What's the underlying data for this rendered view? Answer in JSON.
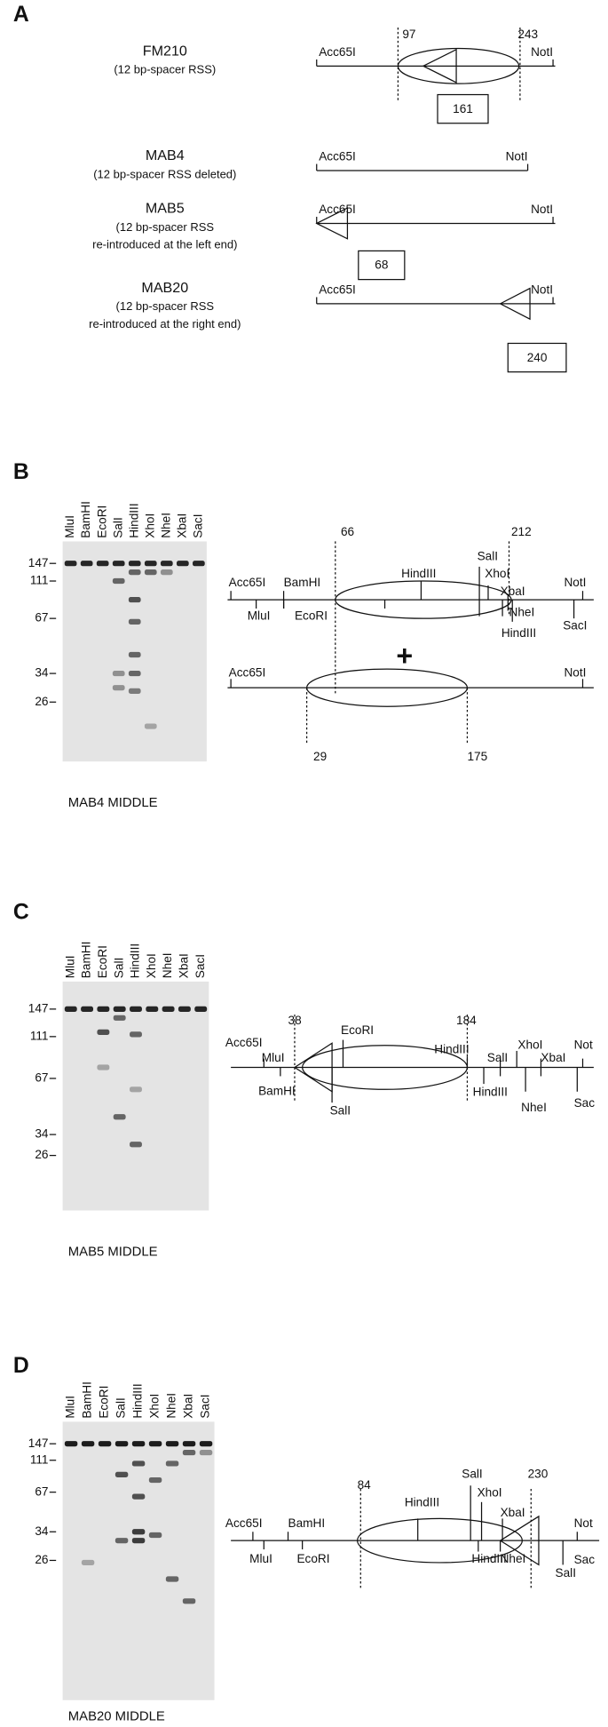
{
  "panel_a": {
    "letter": "A",
    "constructs": [
      {
        "name": "FM210",
        "description": [
          "(12 bp-spacer RSS)"
        ],
        "sites": [
          "Acc65I",
          "NotI"
        ],
        "positions": [
          "97",
          "243"
        ],
        "box": "161"
      },
      {
        "name": "MAB4",
        "description": [
          "(12 bp-spacer RSS deleted)"
        ],
        "sites": [
          "Acc65I",
          "NotI"
        ]
      },
      {
        "name": "MAB5",
        "description": [
          "(12 bp-spacer RSS",
          "re-introduced at the left end)"
        ],
        "sites": [
          "Acc65I",
          "NotI"
        ],
        "box": "68"
      },
      {
        "name": "MAB20",
        "description": [
          "(12 bp-spacer RSS",
          "re-introduced at the right end)"
        ],
        "sites": [
          "Acc65I",
          "NotI"
        ],
        "box": "240"
      }
    ]
  },
  "panel_b": {
    "letter": "B",
    "lanes": [
      "MluI",
      "BamHI",
      "EcoRI",
      "SalI",
      "HindIII",
      "XhoI",
      "NheI",
      "XbaI",
      "SacI"
    ],
    "size_markers": [
      "147",
      "111",
      "67",
      "34",
      "26"
    ],
    "caption": "MAB4 MIDDLE",
    "map_top_labels": [
      "Acc65I",
      "BamHI",
      "NotI",
      "HindIII",
      "SalI",
      "XhoI",
      "XbaI",
      "MluI",
      "EcoRI",
      "NheI",
      "SacI",
      "HindIII",
      "66",
      "212"
    ],
    "plus": "+",
    "map_bottom_labels": [
      "Acc65I",
      "NotI",
      "29",
      "175"
    ]
  },
  "panel_c": {
    "letter": "C",
    "lanes": [
      "MluI",
      "BamHI",
      "EcoRI",
      "SalI",
      "HindIII",
      "XhoI",
      "NheI",
      "XbaI",
      "SacI"
    ],
    "size_markers": [
      "147",
      "111",
      "67",
      "34",
      "26"
    ],
    "caption": "MAB5 MIDDLE",
    "map_labels": [
      "Acc65I",
      "MluI",
      "BamHI",
      "38",
      "EcoRI",
      "SalI",
      "184",
      "HindIII",
      "SalI",
      "XhoI",
      "XbaI",
      "Not",
      "HindIII",
      "NheI",
      "Sac"
    ]
  },
  "panel_d": {
    "letter": "D",
    "lanes": [
      "MluI",
      "BamHI",
      "EcoRI",
      "SalI",
      "HindIII",
      "XhoI",
      "NheI",
      "XbaI",
      "SacI"
    ],
    "size_markers": [
      "147",
      "111",
      "67",
      "34",
      "26"
    ],
    "caption": "MAB20 MIDDLE",
    "map_labels": [
      "Acc65I",
      "BamHI",
      "MluI",
      "EcoRI",
      "84",
      "HindIII",
      "SalI",
      "XhoI",
      "XbaI",
      "230",
      "Not",
      "HindIII",
      "NheI",
      "Sac",
      "SalI"
    ]
  }
}
